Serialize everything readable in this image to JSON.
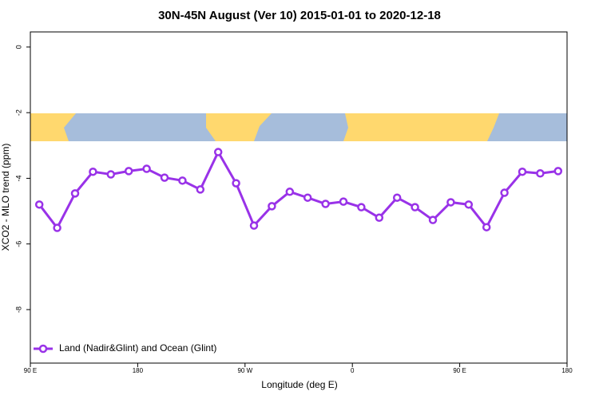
{
  "chart_data": {
    "type": "line",
    "title": "30N-45N August (Ver 10)   2015-01-01 to 2020-12-18",
    "xlabel": "Longitude (deg E)",
    "ylabel": "XCO2 - MLO trend (ppm)",
    "x": [
      97.5,
      112.5,
      127.5,
      142.5,
      157.5,
      172.5,
      187.5,
      202.5,
      217.5,
      232.5,
      247.5,
      262.5,
      277.5,
      292.5,
      307.5,
      322.5,
      337.5,
      352.5,
      367.5,
      382.5,
      397.5,
      412.5,
      427.5,
      442.5,
      457.5,
      472.5,
      487.5,
      502.5,
      517.5,
      532.5
    ],
    "series": [
      {
        "name": "Land (Nadir&Glint) and Ocean (Glint)",
        "color": "#9932e8",
        "values": [
          -4.8,
          -5.51,
          -4.46,
          -3.8,
          -3.88,
          -3.78,
          -3.71,
          -3.98,
          -4.07,
          -4.34,
          -3.2,
          -4.15,
          -5.44,
          -4.85,
          -4.41,
          -4.59,
          -4.78,
          -4.71,
          -4.88,
          -5.2,
          -4.59,
          -4.88,
          -5.27,
          -4.73,
          -4.8,
          -5.49,
          -4.44,
          -3.8,
          -3.85,
          -3.78
        ]
      }
    ],
    "xlim": [
      90,
      540
    ],
    "xticks": [
      {
        "value": 90,
        "label": "90 E"
      },
      180,
      {
        "value": 270,
        "label": "90 W"
      },
      {
        "value": 360,
        "label": "0"
      },
      {
        "value": 450,
        "label": "90 E"
      },
      {
        "value": 540,
        "label": "180"
      }
    ],
    "ylim": [
      -9.63,
      0.46
    ],
    "yticks": [
      0,
      -2,
      -4,
      -6,
      -8
    ],
    "legend": "bottom-left"
  }
}
